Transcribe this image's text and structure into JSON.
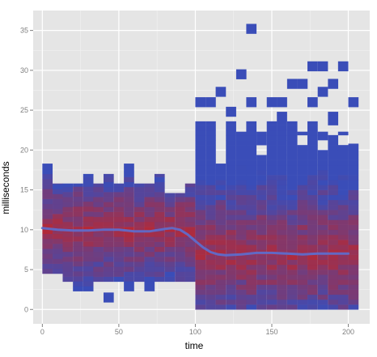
{
  "chart_data": {
    "type": "heatmap",
    "title": "",
    "xlabel": "time",
    "ylabel": "milliseconds",
    "xlim": [
      -6,
      214
    ],
    "ylim": [
      -1.8,
      37.5
    ],
    "x_ticks": [
      0,
      50,
      100,
      150,
      200
    ],
    "y_ticks": [
      0,
      5,
      10,
      15,
      20,
      25,
      30,
      35
    ],
    "x_tick_labels": [
      "0",
      "50",
      "100",
      "150",
      "200"
    ],
    "y_tick_labels": [
      "0",
      "5",
      "10",
      "15",
      "20",
      "25",
      "30",
      "35"
    ],
    "grid": true,
    "bin_width_x": 6.7,
    "bin_height_y": 1.25,
    "color_low": "#3a4db8",
    "color_high": "#c0262a",
    "panel_background": "#e5e5e5",
    "grid_color": "#ffffff",
    "smooth_line_color": "#5b6fd1",
    "segments": [
      {
        "x_start": 0,
        "x_end": 100,
        "core_y": [
          7,
          13
        ],
        "mid_y": [
          4.5,
          14.5
        ],
        "center_y": 10
      },
      {
        "x_start": 100,
        "x_end": 205,
        "core_y": [
          2,
          12
        ],
        "mid_y": [
          0.5,
          17
        ],
        "center_y": 7
      }
    ],
    "outer_columns": [
      {
        "x": 0,
        "y_min": 4.5,
        "y_max": 18.3
      },
      {
        "x": 6.7,
        "y_min": 4.5,
        "y_max": 15.8
      },
      {
        "x": 13.3,
        "y_min": 3.5,
        "y_max": 15.8
      },
      {
        "x": 20,
        "y_min": 2.3,
        "y_max": 15.8
      },
      {
        "x": 26.7,
        "y_min": 2.3,
        "y_max": 17
      },
      {
        "x": 33.3,
        "y_min": 3.5,
        "y_max": 15.8
      },
      {
        "x": 40,
        "y_min": 3.5,
        "y_max": 17
      },
      {
        "x": 46.7,
        "y_min": 3.5,
        "y_max": 15.8
      },
      {
        "x": 53.3,
        "y_min": 3.5,
        "y_max": 18.3
      },
      {
        "x": 60,
        "y_min": 3.5,
        "y_max": 15.8
      },
      {
        "x": 66.7,
        "y_min": 3.5,
        "y_max": 15.8
      },
      {
        "x": 73.3,
        "y_min": 3.5,
        "y_max": 17
      },
      {
        "x": 80,
        "y_min": 3.5,
        "y_max": 14.6
      },
      {
        "x": 86.7,
        "y_min": 3.5,
        "y_max": 14.6
      },
      {
        "x": 93.3,
        "y_min": 3.5,
        "y_max": 15.8
      },
      {
        "x": 100,
        "y_min": 0,
        "y_max": 23.6
      },
      {
        "x": 106.7,
        "y_min": 0,
        "y_max": 23.6
      },
      {
        "x": 113.3,
        "y_min": 0,
        "y_max": 18.3
      },
      {
        "x": 120,
        "y_min": 0,
        "y_max": 23.6
      },
      {
        "x": 126.7,
        "y_min": 0,
        "y_max": 22.3
      },
      {
        "x": 133.3,
        "y_min": 0,
        "y_max": 23.6
      },
      {
        "x": 140,
        "y_min": 0,
        "y_max": 22.3
      },
      {
        "x": 146.7,
        "y_min": 0,
        "y_max": 23.6
      },
      {
        "x": 153.3,
        "y_min": 0,
        "y_max": 24.8
      },
      {
        "x": 160,
        "y_min": 0,
        "y_max": 23.6
      },
      {
        "x": 166.7,
        "y_min": 0,
        "y_max": 22.3
      },
      {
        "x": 173.3,
        "y_min": 0,
        "y_max": 23.6
      },
      {
        "x": 180,
        "y_min": 0,
        "y_max": 22.3
      },
      {
        "x": 186.7,
        "y_min": 0,
        "y_max": 24.8
      },
      {
        "x": 193.3,
        "y_min": 0,
        "y_max": 22.3
      },
      {
        "x": 200,
        "y_min": 0,
        "y_max": 20.8
      }
    ],
    "outlier_bins": [
      {
        "x": 40,
        "y": 1.5
      },
      {
        "x": 53.3,
        "y": 2.9
      },
      {
        "x": 66.7,
        "y": 2.9
      },
      {
        "x": 100,
        "y": 26
      },
      {
        "x": 106.7,
        "y": 26
      },
      {
        "x": 113.3,
        "y": 27.3
      },
      {
        "x": 120,
        "y": 24.8
      },
      {
        "x": 126.7,
        "y": 29.5
      },
      {
        "x": 133.3,
        "y": 26
      },
      {
        "x": 133.3,
        "y": 35.2
      },
      {
        "x": 146.7,
        "y": 26
      },
      {
        "x": 153.3,
        "y": 26
      },
      {
        "x": 160,
        "y": 28.3
      },
      {
        "x": 166.7,
        "y": 28.3
      },
      {
        "x": 173.3,
        "y": 30.5
      },
      {
        "x": 173.3,
        "y": 26
      },
      {
        "x": 180,
        "y": 30.5
      },
      {
        "x": 180,
        "y": 27.3
      },
      {
        "x": 186.7,
        "y": 28.3
      },
      {
        "x": 193.3,
        "y": 30.5
      },
      {
        "x": 200,
        "y": 26
      }
    ],
    "interior_holes": [
      {
        "x": 113.3,
        "y": 21.1
      },
      {
        "x": 140,
        "y": 19.8
      },
      {
        "x": 166.7,
        "y": 21.1
      },
      {
        "x": 180,
        "y": 20.5
      },
      {
        "x": 186.7,
        "y": 22.3
      },
      {
        "x": 193.3,
        "y": 21.1
      }
    ],
    "smooth_line": {
      "x": [
        0,
        10,
        20,
        30,
        40,
        50,
        60,
        70,
        80,
        85,
        90,
        95,
        100,
        105,
        110,
        115,
        120,
        130,
        140,
        150,
        160,
        170,
        180,
        190,
        200
      ],
      "y": [
        10.2,
        10.0,
        9.9,
        9.9,
        10.0,
        10.0,
        9.8,
        9.8,
        10.1,
        10.2,
        10.0,
        9.4,
        8.6,
        7.8,
        7.2,
        6.9,
        6.8,
        6.9,
        7.1,
        7.1,
        7.0,
        6.9,
        7.0,
        7.0,
        7.0
      ]
    }
  }
}
